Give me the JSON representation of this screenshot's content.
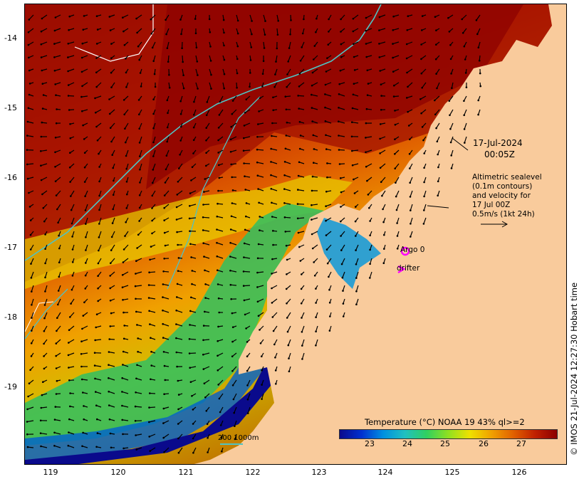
{
  "map": {
    "date": "17-Jul-2024",
    "time": "00:05Z",
    "altimetry_note": [
      "Altimetric sealevel",
      "(0.1m contours)",
      "and velocity for",
      "17 Jul 00Z",
      "0.5m/s (1kt 24h)"
    ],
    "legend": {
      "argo_label": "Argo 0",
      "drifter_label": "drifter"
    },
    "scale_bar": {
      "shallow": "200",
      "deep": "1000m"
    },
    "colorbar": {
      "title": "Temperature (°C) NOAA 19 43% ql>=2",
      "ticks": [
        "23",
        "24",
        "25",
        "26",
        "27"
      ],
      "colors": [
        "#0a0a8c",
        "#0030d0",
        "#0090e0",
        "#20c0c0",
        "#30d060",
        "#90e020",
        "#f0e000",
        "#f0a000",
        "#e06000",
        "#c02000",
        "#8b0000"
      ]
    },
    "y_axis_labels": [
      "-14",
      "-15",
      "-16",
      "-17",
      "-18",
      "-19"
    ],
    "x_axis_labels": [
      "119",
      "120",
      "121",
      "122",
      "123",
      "124",
      "125",
      "126"
    ],
    "credit": "© IMOS 21-Jul-2024 12:27:30 Hobart time",
    "colors": {
      "land": "#f9cb9c",
      "argo": "#ff00ff",
      "drifter": "#ff00ff",
      "contour": "#4fc3c3"
    }
  }
}
